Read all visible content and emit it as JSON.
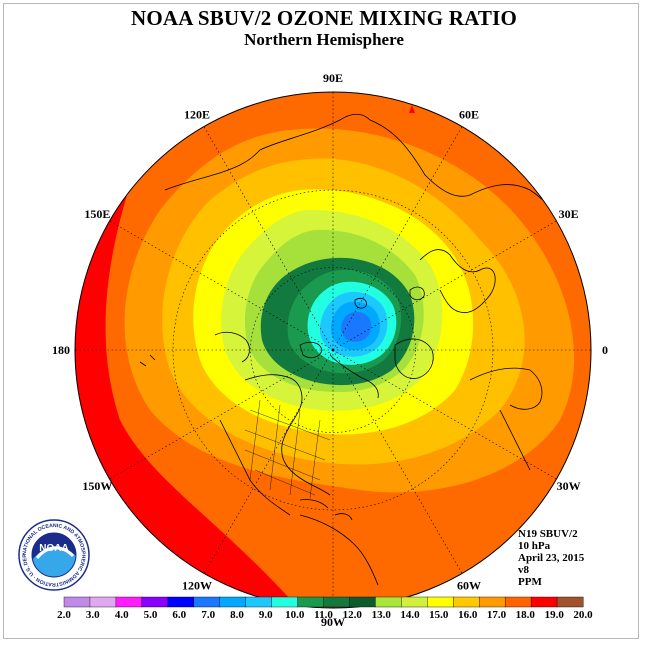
{
  "header": {
    "title": "NOAA SBUV/2 OZONE MIXING RATIO",
    "subtitle": "Northern Hemisphere"
  },
  "map": {
    "projection": "north polar stereographic",
    "longitude_labels": [
      {
        "text": "90E",
        "lon": 90
      },
      {
        "text": "60E",
        "lon": 60
      },
      {
        "text": "30E",
        "lon": 30
      },
      {
        "text": "0",
        "lon": 0
      },
      {
        "text": "30W",
        "lon": -30
      },
      {
        "text": "60W",
        "lon": -60
      },
      {
        "text": "90W",
        "lon": -90
      },
      {
        "text": "120W",
        "lon": -120
      },
      {
        "text": "150W",
        "lon": -150
      },
      {
        "text": "180",
        "lon": 180
      },
      {
        "text": "150E",
        "lon": 150
      },
      {
        "text": "120E",
        "lon": 120
      }
    ],
    "graticule_latitudes": [
      30,
      60
    ]
  },
  "info": {
    "satellite": "N19 SBUV/2",
    "level": "10 hPa",
    "date": "April 23, 2015",
    "version": "v8",
    "units": "PPM"
  },
  "logo": {
    "text": "NOAA",
    "ring_text": "NATIONAL OCEANIC AND ATMOSPHERIC ADMINISTRATION · U.S. DEPARTMENT OF COMMERCE",
    "colors": {
      "ring": "#ffffff",
      "navy": "#1b2c8a",
      "sky": "#36a7e8"
    }
  },
  "colorbar": {
    "ticks": [
      "2.0",
      "3.0",
      "4.0",
      "5.0",
      "6.0",
      "7.0",
      "8.0",
      "9.0",
      "10.0",
      "11.0",
      "12.0",
      "13.0",
      "14.0",
      "15.0",
      "16.0",
      "17.0",
      "18.0",
      "19.0",
      "20.0"
    ],
    "colors": [
      "#c28ae8",
      "#e0a8f0",
      "#ff1cff",
      "#8a00ff",
      "#0000ff",
      "#1a78ff",
      "#00a8ff",
      "#1cc8ff",
      "#22ffe0",
      "#1a9a4e",
      "#127a3e",
      "#0a5c2e",
      "#a8e63a",
      "#d0f03a",
      "#ffff00",
      "#ffc800",
      "#ff9a00",
      "#ff6400",
      "#ff0000",
      "#a0522d"
    ]
  }
}
